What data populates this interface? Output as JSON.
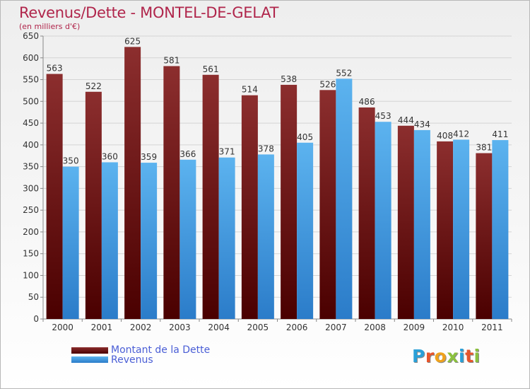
{
  "header": {
    "title": "Revenus/Dette - MONTEL-DE-GELAT",
    "subtitle": "(en milliers d'€)"
  },
  "colors": {
    "dette": "#7a1f1f",
    "revenus": "#3f9de4",
    "title": "#b0254b",
    "legend_text": "#4a5ed6"
  },
  "chart_data": {
    "type": "bar",
    "title": "Revenus/Dette - MONTEL-DE-GELAT",
    "ylabel": "(en milliers d'€)",
    "xlabel": "",
    "categories": [
      "2000",
      "2001",
      "2002",
      "2003",
      "2004",
      "2005",
      "2006",
      "2007",
      "2008",
      "2009",
      "2010",
      "2011"
    ],
    "series": [
      {
        "name": "Montant de la Dette",
        "values": [
          563,
          522,
          625,
          581,
          561,
          514,
          538,
          526,
          486,
          444,
          408,
          381
        ]
      },
      {
        "name": "Revenus",
        "values": [
          350,
          360,
          359,
          366,
          371,
          378,
          405,
          552,
          453,
          434,
          412,
          411
        ]
      }
    ],
    "ylim": [
      0,
      650
    ],
    "yticks": [
      0,
      50,
      100,
      150,
      200,
      250,
      300,
      350,
      400,
      450,
      500,
      550,
      600,
      650
    ],
    "grid": true,
    "legend_position": "bottom-left"
  },
  "legend": {
    "items": [
      {
        "label": "Montant de la Dette"
      },
      {
        "label": "Revenus"
      }
    ]
  },
  "logo": {
    "text": "Proxiti"
  }
}
